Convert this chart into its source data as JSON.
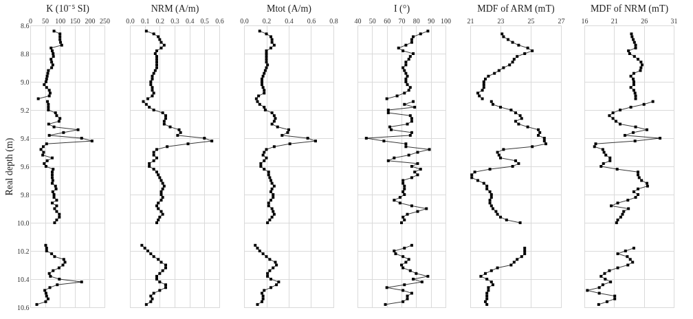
{
  "chart_data": [
    {
      "type": "line",
      "xlabel": "K (10⁻⁵ SI)",
      "ylabel": "Real depth (m)",
      "xlim": [
        0,
        250
      ],
      "xticks": [
        0,
        50,
        100,
        150,
        200,
        250
      ],
      "ylim": [
        10.6,
        8.6
      ],
      "yticks": [
        8.6,
        8.8,
        {
          "value": 9,
          "label": "9.0"
        },
        9.2,
        9.4,
        9.6,
        9.8,
        {
          "value": 10,
          "label": "10.0"
        },
        10.2,
        10.4,
        10.6
      ],
      "grid": true,
      "marker": "square",
      "line_style": "solid",
      "series": [
        {
          "color": "#000000",
          "x": [
            80,
            100,
            100,
            100,
            102,
            106,
            70,
            74,
            77,
            78,
            70,
            72,
            76,
            72,
            61,
            59,
            57,
            55,
            53,
            47,
            55,
            64,
            67,
            64,
            27,
            null,
            58,
            61,
            61,
            61,
            85,
            89,
            100,
            97,
            62,
            80,
            161,
            112,
            64,
            173,
            208,
            55,
            44,
            36,
            45,
            42,
            74,
            57,
            47,
            53,
            77,
            74,
            74,
            74,
            76,
            74,
            85,
            87,
            76,
            80,
            80,
            89,
            74,
            89,
            82,
            89,
            98,
            98,
            89,
            82,
            null,
            52,
            55,
            55,
            72,
            82,
            113,
            117,
            110,
            97,
            77,
            64,
            68,
            98,
            173,
            91,
            66,
            49,
            53,
            55,
            60,
            52,
            22
          ],
          "values": [
            8.64,
            8.66,
            8.68,
            8.7,
            8.72,
            8.74,
            8.76,
            8.78,
            8.8,
            8.82,
            8.84,
            8.86,
            8.88,
            8.9,
            8.92,
            8.94,
            8.96,
            8.98,
            9,
            9.02,
            9.04,
            9.06,
            9.08,
            9.1,
            9.12,
            null,
            9.14,
            9.16,
            9.18,
            9.2,
            9.22,
            9.24,
            9.26,
            9.28,
            9.3,
            9.32,
            9.34,
            9.36,
            9.38,
            9.4,
            9.42,
            9.44,
            9.46,
            9.48,
            9.5,
            9.52,
            9.54,
            9.56,
            9.58,
            9.6,
            9.62,
            9.64,
            9.66,
            9.68,
            9.7,
            9.72,
            9.74,
            9.76,
            9.78,
            9.8,
            9.82,
            9.84,
            9.86,
            9.88,
            9.9,
            9.92,
            9.94,
            9.96,
            9.98,
            10,
            null,
            10.16,
            10.18,
            10.2,
            10.22,
            10.24,
            10.26,
            10.28,
            10.3,
            10.32,
            10.34,
            10.36,
            10.38,
            10.4,
            10.42,
            10.44,
            10.46,
            10.48,
            10.5,
            10.52,
            10.54,
            10.56,
            10.58
          ]
        }
      ]
    },
    {
      "type": "line",
      "xlabel": "NRM (A/m)",
      "xlim": [
        0,
        0.6
      ],
      "xticks": [
        {
          "value": 0,
          "label": "0.0"
        },
        0.1,
        0.2,
        0.3,
        0.4,
        0.5,
        0.6
      ],
      "ylim": [
        10.6,
        8.6
      ],
      "yticks": [
        8.6,
        8.8,
        9,
        9.2,
        9.4,
        9.6,
        9.8,
        10,
        10.2,
        10.4,
        10.6
      ],
      "tick_labels": "x",
      "grid": true,
      "marker": "square",
      "line_style": "solid",
      "series": [
        {
          "color": "#000000",
          "x": [
            0.11,
            0.16,
            0.19,
            0.2,
            0.21,
            0.23,
            0.21,
            0.18,
            0.17,
            0.18,
            0.18,
            0.18,
            0.18,
            0.18,
            0.17,
            0.16,
            0.15,
            0.15,
            0.14,
            0.14,
            0.15,
            0.15,
            0.16,
            0.15,
            0.12,
            null,
            0.09,
            0.11,
            0.13,
            0.16,
            0.22,
            0.24,
            0.24,
            0.23,
            0.23,
            0.27,
            0.33,
            0.34,
            0.32,
            0.5,
            0.55,
            0.39,
            0.25,
            0.18,
            0.16,
            0.16,
            0.18,
            0.16,
            0.13,
            0.13,
            0.16,
            0.18,
            0.19,
            0.2,
            0.21,
            0.22,
            0.23,
            0.22,
            0.21,
            0.21,
            0.22,
            0.21,
            0.19,
            0.18,
            0.19,
            0.21,
            0.22,
            0.2,
            0.19,
            0.18,
            null,
            0.08,
            0.1,
            0.12,
            0.14,
            0.16,
            0.19,
            0.21,
            0.24,
            0.24,
            0.22,
            0.2,
            0.18,
            0.18,
            0.2,
            0.24,
            0.24,
            0.2,
            0.16,
            0.14,
            0.15,
            0.14,
            0.11
          ],
          "values": [
            8.64,
            8.66,
            8.68,
            8.7,
            8.72,
            8.74,
            8.76,
            8.78,
            8.8,
            8.82,
            8.84,
            8.86,
            8.88,
            8.9,
            8.92,
            8.94,
            8.96,
            8.98,
            9,
            9.02,
            9.04,
            9.06,
            9.08,
            9.1,
            9.12,
            null,
            9.14,
            9.16,
            9.18,
            9.2,
            9.22,
            9.24,
            9.26,
            9.28,
            9.3,
            9.32,
            9.34,
            9.36,
            9.38,
            9.4,
            9.42,
            9.44,
            9.46,
            9.48,
            9.5,
            9.52,
            9.54,
            9.56,
            9.58,
            9.6,
            9.62,
            9.64,
            9.66,
            9.68,
            9.7,
            9.72,
            9.74,
            9.76,
            9.78,
            9.8,
            9.82,
            9.84,
            9.86,
            9.88,
            9.9,
            9.92,
            9.94,
            9.96,
            9.98,
            10,
            null,
            10.16,
            10.18,
            10.2,
            10.22,
            10.24,
            10.26,
            10.28,
            10.3,
            10.32,
            10.34,
            10.36,
            10.38,
            10.4,
            10.42,
            10.44,
            10.46,
            10.48,
            10.5,
            10.52,
            10.54,
            10.56,
            10.58
          ]
        }
      ]
    },
    {
      "type": "line",
      "xlabel": "Mtot (A/m)",
      "xlim": [
        0,
        0.8
      ],
      "xticks": [
        {
          "value": 0,
          "label": "0.0"
        },
        0.2,
        0.4,
        0.6,
        0.8
      ],
      "ylim": [
        10.6,
        8.6
      ],
      "yticks": [
        8.6,
        8.8,
        9,
        9.2,
        9.4,
        9.6,
        9.8,
        10,
        10.2,
        10.4,
        10.6
      ],
      "tick_labels": "x",
      "grid": true,
      "marker": "square",
      "line_style": "solid",
      "series": [
        {
          "color": "#000000",
          "x": [
            0.14,
            0.2,
            0.24,
            0.25,
            0.25,
            0.27,
            0.24,
            0.2,
            0.2,
            0.2,
            0.2,
            0.2,
            0.21,
            0.2,
            0.19,
            0.18,
            0.17,
            0.16,
            0.16,
            0.16,
            0.17,
            0.18,
            0.18,
            0.13,
            0.11,
            null,
            0.12,
            0.14,
            0.18,
            0.19,
            0.25,
            0.27,
            0.28,
            0.27,
            0.25,
            0.3,
            0.4,
            0.39,
            0.34,
            0.57,
            0.64,
            0.41,
            0.27,
            0.2,
            0.18,
            0.17,
            0.2,
            0.18,
            0.15,
            0.15,
            0.18,
            0.22,
            0.22,
            0.23,
            0.24,
            0.25,
            0.27,
            0.25,
            0.24,
            0.26,
            0.26,
            0.24,
            0.22,
            0.22,
            0.25,
            0.26,
            0.27,
            0.25,
            0.23,
            0.21,
            null,
            0.1,
            0.12,
            0.14,
            0.17,
            0.2,
            0.23,
            0.28,
            0.29,
            0.26,
            0.23,
            0.21,
            0.21,
            0.24,
            0.31,
            0.29,
            0.24,
            0.18,
            0.16,
            0.17,
            0.17,
            0.16,
            0.12
          ],
          "values": [
            8.64,
            8.66,
            8.68,
            8.7,
            8.72,
            8.74,
            8.76,
            8.78,
            8.8,
            8.82,
            8.84,
            8.86,
            8.88,
            8.9,
            8.92,
            8.94,
            8.96,
            8.98,
            9,
            9.02,
            9.04,
            9.06,
            9.08,
            9.1,
            9.12,
            null,
            9.14,
            9.16,
            9.18,
            9.2,
            9.22,
            9.24,
            9.26,
            9.28,
            9.3,
            9.32,
            9.34,
            9.36,
            9.38,
            9.4,
            9.42,
            9.44,
            9.46,
            9.48,
            9.5,
            9.52,
            9.54,
            9.56,
            9.58,
            9.6,
            9.62,
            9.64,
            9.66,
            9.68,
            9.7,
            9.72,
            9.74,
            9.76,
            9.78,
            9.8,
            9.82,
            9.84,
            9.86,
            9.88,
            9.9,
            9.92,
            9.94,
            9.96,
            9.98,
            10,
            null,
            10.16,
            10.18,
            10.2,
            10.22,
            10.24,
            10.26,
            10.28,
            10.3,
            10.32,
            10.34,
            10.36,
            10.38,
            10.4,
            10.42,
            10.44,
            10.46,
            10.48,
            10.5,
            10.52,
            10.54,
            10.56,
            10.58
          ]
        }
      ]
    },
    {
      "type": "line",
      "xlabel": "I (°)",
      "xlim": [
        40,
        100
      ],
      "xticks": [
        40,
        50,
        60,
        70,
        80,
        90,
        100
      ],
      "ylim": [
        10.6,
        8.6
      ],
      "yticks": [
        8.6,
        8.8,
        9,
        9.2,
        9.4,
        9.6,
        9.8,
        10,
        10.2,
        10.4,
        10.6
      ],
      "tick_labels": "x",
      "grid": true,
      "marker": "square",
      "line_style": "solid",
      "series": [
        {
          "color": "#000000",
          "x": [
            88,
            83,
            78,
            77,
            77,
            73,
            68,
            71,
            78,
            76,
            75,
            73,
            73,
            71,
            72,
            73,
            74,
            73,
            73,
            74,
            76,
            75,
            72,
            67,
            60,
            null,
            78,
            72,
            79,
            61,
            61,
            76,
            77,
            77,
            74,
            62,
            63,
            77,
            76,
            46,
            58,
            73,
            73,
            89,
            81,
            75,
            65,
            61,
            81,
            77,
            83,
            79,
            81,
            77,
            71,
            71,
            72,
            72,
            71,
            72,
            69,
            65,
            69,
            77,
            87,
            81,
            74,
            71,
            72,
            70,
            null,
            77,
            72,
            65,
            66,
            71,
            75,
            73,
            70,
            71,
            76,
            80,
            88,
            78,
            84,
            72,
            60,
            71,
            77,
            74,
            74,
            71,
            59
          ],
          "values": [
            8.64,
            8.66,
            8.68,
            8.7,
            8.72,
            8.74,
            8.76,
            8.78,
            8.8,
            8.82,
            8.84,
            8.86,
            8.88,
            8.9,
            8.92,
            8.94,
            8.96,
            8.98,
            9,
            9.02,
            9.04,
            9.06,
            9.08,
            9.1,
            9.12,
            null,
            9.14,
            9.16,
            9.18,
            9.2,
            9.22,
            9.24,
            9.26,
            9.28,
            9.3,
            9.32,
            9.34,
            9.36,
            9.38,
            9.4,
            9.42,
            9.44,
            9.46,
            9.48,
            9.5,
            9.52,
            9.54,
            9.56,
            9.58,
            9.6,
            9.62,
            9.64,
            9.66,
            9.68,
            9.7,
            9.72,
            9.74,
            9.76,
            9.78,
            9.8,
            9.82,
            9.84,
            9.86,
            9.88,
            9.9,
            9.92,
            9.94,
            9.96,
            9.98,
            10,
            null,
            10.16,
            10.18,
            10.2,
            10.22,
            10.24,
            10.26,
            10.28,
            10.3,
            10.32,
            10.34,
            10.36,
            10.38,
            10.4,
            10.42,
            10.44,
            10.46,
            10.48,
            10.5,
            10.52,
            10.54,
            10.56,
            10.58
          ]
        }
      ]
    },
    {
      "type": "line",
      "xlabel": "MDF of ARM (mT)",
      "xlim": [
        21,
        27
      ],
      "xticks": [
        21,
        23,
        25,
        27
      ],
      "ylim": [
        10.6,
        8.6
      ],
      "yticks": [
        8.6,
        8.8,
        9,
        9.2,
        9.4,
        9.6,
        9.8,
        10,
        10.2,
        10.4,
        10.6
      ],
      "tick_labels": "x",
      "grid": true,
      "marker": "square",
      "line_style": "solid",
      "series": [
        {
          "color": "#000000",
          "x": [
            null,
            23.1,
            23.2,
            23.5,
            23.8,
            24.2,
            24.8,
            25.1,
            24.6,
            24.1,
            23.9,
            23.8,
            23.6,
            23.2,
            22.9,
            22.6,
            22.2,
            22.0,
            21.9,
            21.9,
            21.9,
            21.8,
            21.5,
            21.6,
            21.8,
            null,
            22.4,
            22.5,
            23.0,
            23.7,
            24.0,
            24.3,
            24.4,
            24.0,
            24.2,
            24.8,
            25.5,
            25.6,
            25.5,
            25.9,
            25.9,
            26.0,
            25.1,
            23.2,
            22.8,
            22.9,
            23.0,
            24.0,
            24.2,
            23.8,
            22.3,
            21.3,
            21.1,
            21.1,
            21.5,
            21.9,
            22.1,
            22.1,
            22.3,
            22.4,
            22.4,
            22.3,
            22.3,
            22.4,
            22.5,
            22.7,
            22.8,
            23.0,
            23.4,
            24.3,
            null,
            null,
            24.6,
            24.6,
            24.6,
            24.4,
            24.1,
            23.9,
            23.7,
            22.8,
            22.4,
            22.0,
            21.7,
            22.1,
            22.4,
            22.5,
            22.2,
            22.2,
            22.1,
            22.1,
            22.1,
            22.0,
            22.1
          ],
          "values": [
            null,
            8.66,
            8.68,
            8.7,
            8.72,
            8.74,
            8.76,
            8.78,
            8.8,
            8.82,
            8.84,
            8.86,
            8.88,
            8.9,
            8.92,
            8.94,
            8.96,
            8.98,
            9,
            9.02,
            9.04,
            9.06,
            9.08,
            9.1,
            9.12,
            null,
            9.14,
            9.16,
            9.18,
            9.2,
            9.22,
            9.24,
            9.26,
            9.28,
            9.3,
            9.32,
            9.34,
            9.36,
            9.38,
            9.4,
            9.42,
            9.44,
            9.46,
            9.48,
            9.5,
            9.52,
            9.54,
            9.56,
            9.58,
            9.6,
            9.62,
            9.64,
            9.66,
            9.68,
            9.7,
            9.72,
            9.74,
            9.76,
            9.78,
            9.8,
            9.82,
            9.84,
            9.86,
            9.88,
            9.9,
            9.92,
            9.94,
            9.96,
            9.98,
            10,
            null,
            null,
            10.18,
            10.2,
            10.22,
            10.24,
            10.26,
            10.28,
            10.3,
            10.32,
            10.34,
            10.36,
            10.38,
            10.4,
            10.42,
            10.44,
            10.46,
            10.48,
            10.5,
            10.52,
            10.54,
            10.56,
            10.58
          ]
        }
      ]
    },
    {
      "type": "line",
      "xlabel": "MDF of NRM (mT)",
      "xlim": [
        16,
        31
      ],
      "xticks": [
        16,
        21,
        26,
        31
      ],
      "ylim": [
        10.6,
        8.6
      ],
      "yticks": [
        8.6,
        8.8,
        9,
        9.2,
        9.4,
        9.6,
        9.8,
        10,
        10.2,
        10.4,
        10.6
      ],
      "tick_labels": "x",
      "grid": true,
      "marker": "square",
      "line_style": "solid",
      "series": [
        {
          "color": "#000000",
          "x": [
            null,
            23.9,
            24.0,
            24.2,
            24.4,
            24.6,
            24.6,
            23.4,
            23.6,
            24.4,
            25.0,
            25.5,
            25.7,
            25.5,
            25.4,
            24.3,
            23.8,
            24.2,
            24.3,
            24.3,
            23.8,
            24.3,
            24.5,
            24.6,
            24.6,
            null,
            27.5,
            26.0,
            23.8,
            22.0,
            20.8,
            20.2,
            20.8,
            21.3,
            22.0,
            24.6,
            26.5,
            24.2,
            22.8,
            28.7,
            24.5,
            17.9,
            17.7,
            19.1,
            19.3,
            19.6,
            20.3,
            20.3,
            19.2,
            18.8,
            21.5,
            25.0,
            25.0,
            25.2,
            25.6,
            26.5,
            26.6,
            25.0,
            24.3,
            25.0,
            24.6,
            23.3,
            21.6,
            20.5,
            23.4,
            22.6,
            22.4,
            22.1,
            21.6,
            21.4,
            null,
            null,
            24.3,
            22.9,
            21.6,
            23.2,
            23.7,
            24.1,
            23.3,
            21.6,
            20.2,
            19.4,
            18.8,
            19.5,
            20.4,
            19.1,
            18.5,
            16.5,
            18.5,
            21.1,
            21.1,
            19.8,
            18.4
          ],
          "values": [
            null,
            8.66,
            8.68,
            8.7,
            8.72,
            8.74,
            8.76,
            8.78,
            8.8,
            8.82,
            8.84,
            8.86,
            8.88,
            8.9,
            8.92,
            8.94,
            8.96,
            8.98,
            9,
            9.02,
            9.04,
            9.06,
            9.08,
            9.1,
            9.12,
            null,
            9.14,
            9.16,
            9.18,
            9.2,
            9.22,
            9.24,
            9.26,
            9.28,
            9.3,
            9.32,
            9.34,
            9.36,
            9.38,
            9.4,
            9.42,
            9.44,
            9.46,
            9.48,
            9.5,
            9.52,
            9.54,
            9.56,
            9.58,
            9.6,
            9.62,
            9.64,
            9.66,
            9.68,
            9.7,
            9.72,
            9.74,
            9.76,
            9.78,
            9.8,
            9.82,
            9.84,
            9.86,
            9.88,
            9.9,
            9.92,
            9.94,
            9.96,
            9.98,
            10,
            null,
            null,
            10.18,
            10.2,
            10.22,
            10.24,
            10.26,
            10.28,
            10.3,
            10.32,
            10.34,
            10.36,
            10.38,
            10.4,
            10.42,
            10.44,
            10.46,
            10.48,
            10.5,
            10.52,
            10.54,
            10.56,
            10.58
          ]
        }
      ]
    }
  ]
}
